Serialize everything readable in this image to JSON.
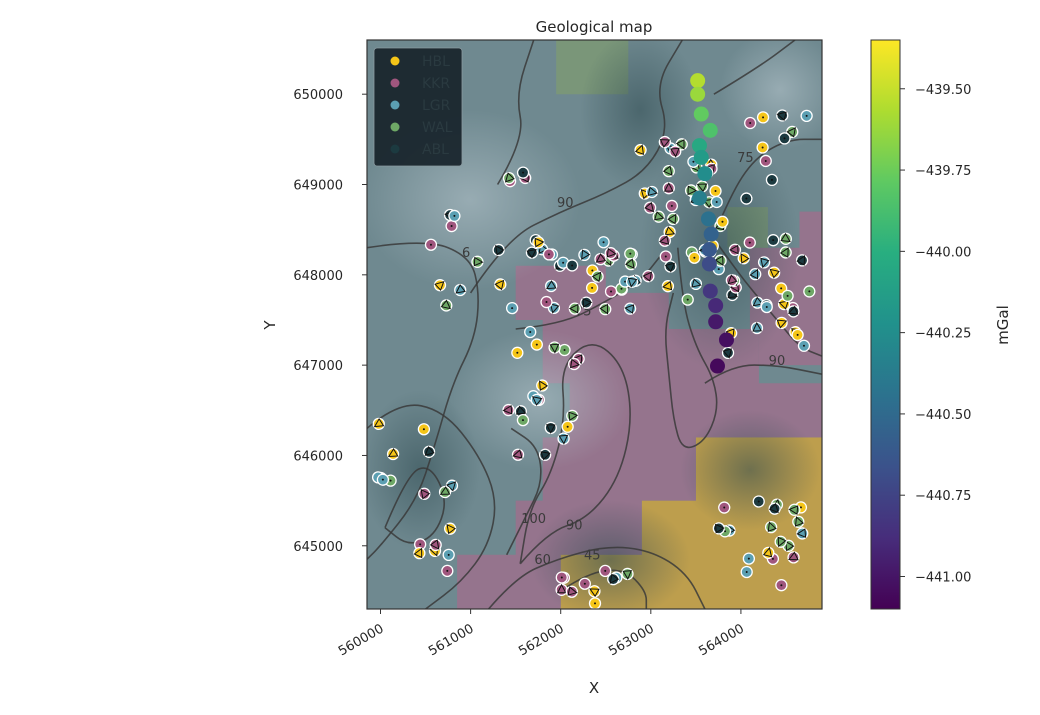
{
  "title": "Geological map",
  "xlabel": "X",
  "ylabel": "Y",
  "colorbar": {
    "label": "mGal",
    "range": [
      -441.1,
      -439.35
    ],
    "ticks": [
      -441.0,
      -440.75,
      -440.5,
      -440.25,
      -440.0,
      -439.75,
      -439.5
    ],
    "tick_labels": [
      "−441.00",
      "−440.75",
      "−440.50",
      "−440.25",
      "−440.00",
      "−439.75",
      "−439.50"
    ],
    "colormap": "viridis"
  },
  "chart_data": {
    "type": "scatter",
    "xlim": [
      559850,
      564900
    ],
    "ylim": [
      644300,
      650600
    ],
    "x_ticks": [
      560000,
      561000,
      562000,
      563000,
      564000
    ],
    "x_tick_labels": [
      "560000",
      "561000",
      "562000",
      "563000",
      "564000"
    ],
    "y_ticks": [
      645000,
      646000,
      647000,
      648000,
      649000,
      650000
    ],
    "y_tick_labels": [
      "645000",
      "646000",
      "647000",
      "648000",
      "649000",
      "650000"
    ],
    "legend": {
      "placement": "top-left",
      "entries": [
        {
          "label": "HBL",
          "color": "#f5c518"
        },
        {
          "label": "KKR",
          "color": "#a0567e"
        },
        {
          "label": "LGR",
          "color": "#5b9fb2"
        },
        {
          "label": "WAL",
          "color": "#6ea866"
        },
        {
          "label": "ABL",
          "color": "#1c3a40"
        }
      ]
    },
    "geology_units": [
      {
        "unit": "HBL",
        "color": "#d4a43a",
        "polygon": [
          [
            562000,
            644300
          ],
          [
            562000,
            644900
          ],
          [
            562900,
            644900
          ],
          [
            562900,
            645500
          ],
          [
            563500,
            645500
          ],
          [
            563500,
            646200
          ],
          [
            564900,
            646200
          ],
          [
            564900,
            644300
          ]
        ]
      },
      {
        "unit": "KKR",
        "color": "#a06e8c",
        "polygon": [
          [
            560850,
            644300
          ],
          [
            560850,
            644900
          ],
          [
            561500,
            644900
          ],
          [
            561500,
            645500
          ],
          [
            561800,
            645500
          ],
          [
            561800,
            646200
          ],
          [
            562100,
            646200
          ],
          [
            562100,
            646800
          ],
          [
            561800,
            646800
          ],
          [
            561800,
            647500
          ],
          [
            561500,
            647500
          ],
          [
            561500,
            648100
          ],
          [
            562500,
            648100
          ],
          [
            562500,
            647800
          ],
          [
            563200,
            647800
          ],
          [
            563200,
            647400
          ],
          [
            563900,
            647400
          ],
          [
            564200,
            647400
          ],
          [
            564200,
            646800
          ],
          [
            564900,
            646800
          ],
          [
            564900,
            646200
          ],
          [
            563500,
            646200
          ],
          [
            563500,
            645500
          ],
          [
            562900,
            645500
          ],
          [
            562900,
            644900
          ],
          [
            562000,
            644900
          ],
          [
            562000,
            644300
          ]
        ]
      },
      {
        "unit": "KKR",
        "color": "#a06e8c",
        "polygon": [
          [
            564100,
            648300
          ],
          [
            564650,
            648300
          ],
          [
            564650,
            648700
          ],
          [
            564900,
            648700
          ],
          [
            564900,
            647000
          ],
          [
            564200,
            647000
          ],
          [
            564200,
            647400
          ],
          [
            564100,
            647400
          ]
        ]
      },
      {
        "unit": "WAL",
        "color": "#7d9a72",
        "polygon": [
          [
            561950,
            650600
          ],
          [
            562750,
            650600
          ],
          [
            562750,
            650000
          ],
          [
            561950,
            650000
          ]
        ]
      },
      {
        "unit": "WAL",
        "color": "#7d9a72",
        "polygon": [
          [
            563850,
            648750
          ],
          [
            564300,
            648750
          ],
          [
            564300,
            648300
          ],
          [
            563850,
            648300
          ]
        ]
      }
    ],
    "contours": [
      {
        "label": "75",
        "label_at": [
          564050,
          649250
        ],
        "path": [
          [
            563650,
            648300
          ],
          [
            563800,
            648700
          ],
          [
            564100,
            649250
          ],
          [
            564500,
            649500
          ],
          [
            564900,
            649500
          ]
        ]
      },
      {
        "label": "90",
        "label_at": [
          562050,
          648750
        ],
        "path": [
          [
            561000,
            647800
          ],
          [
            561400,
            648400
          ],
          [
            562000,
            648700
          ],
          [
            562500,
            648900
          ],
          [
            562950,
            649150
          ],
          [
            563200,
            649600
          ],
          [
            563050,
            650100
          ],
          [
            563350,
            650600
          ]
        ]
      },
      {
        "label": "75",
        "label_at": [
          562250,
          647550
        ],
        "path": [
          [
            561500,
            647400
          ],
          [
            562000,
            647450
          ],
          [
            562500,
            647700
          ],
          [
            562900,
            647950
          ],
          [
            563100,
            648200
          ]
        ]
      },
      {
        "label": "6",
        "label_at": [
          560950,
          648200
        ],
        "path": [
          [
            559850,
            648300
          ],
          [
            560500,
            648400
          ],
          [
            561000,
            648200
          ],
          [
            561100,
            647800
          ],
          [
            561050,
            647300
          ],
          [
            560800,
            646800
          ],
          [
            560600,
            646100
          ],
          [
            560400,
            645500
          ],
          [
            560000,
            645000
          ],
          [
            559850,
            644850
          ]
        ]
      },
      {
        "label": "90",
        "label_at": [
          564400,
          647000
        ],
        "path": [
          [
            563600,
            646800
          ],
          [
            563900,
            647000
          ],
          [
            564400,
            647000
          ],
          [
            564900,
            646900
          ]
        ]
      },
      {
        "label": "90",
        "label_at": [
          562150,
          645180
        ],
        "path": [
          [
            561550,
            644800
          ],
          [
            561850,
            645150
          ],
          [
            562300,
            645300
          ],
          [
            562650,
            645750
          ],
          [
            562800,
            646400
          ],
          [
            562700,
            647000
          ],
          [
            562350,
            647300
          ],
          [
            562000,
            647000
          ],
          [
            562050,
            646400
          ],
          [
            561900,
            645800
          ],
          [
            561650,
            645400
          ],
          [
            561550,
            644800
          ]
        ]
      },
      {
        "label": "100",
        "label_at": [
          561700,
          645250
        ],
        "path": [
          [
            561400,
            644900
          ],
          [
            561600,
            645300
          ],
          [
            561800,
            645700
          ],
          [
            561750,
            646100
          ],
          [
            561450,
            646300
          ]
        ]
      },
      {
        "label": "60",
        "label_at": [
          561800,
          644800
        ],
        "path": [
          [
            561200,
            644300
          ],
          [
            561500,
            644650
          ],
          [
            561950,
            644850
          ],
          [
            562500,
            645000
          ],
          [
            563000,
            644950
          ],
          [
            563400,
            644700
          ],
          [
            563600,
            644300
          ]
        ]
      },
      {
        "label": "45",
        "label_at": [
          562350,
          644850
        ],
        "path": [
          [
            562000,
            644500
          ],
          [
            562300,
            644700
          ],
          [
            562700,
            644750
          ],
          [
            562950,
            644500
          ],
          [
            562950,
            644300
          ]
        ]
      },
      {
        "label": "",
        "label_at": null,
        "path": [
          [
            563300,
            648300
          ],
          [
            563350,
            647700
          ],
          [
            563500,
            647200
          ],
          [
            563700,
            646850
          ],
          [
            563750,
            646500
          ],
          [
            563600,
            646150
          ],
          [
            563350,
            646050
          ],
          [
            563250,
            646400
          ],
          [
            563200,
            646900
          ],
          [
            563150,
            647400
          ],
          [
            563250,
            647800
          ]
        ]
      },
      {
        "label": "",
        "label_at": null,
        "path": [
          [
            563700,
            648400
          ],
          [
            563950,
            648050
          ],
          [
            564150,
            647800
          ],
          [
            564400,
            647500
          ],
          [
            564650,
            647200
          ],
          [
            564900,
            647100
          ]
        ]
      },
      {
        "label": "",
        "label_at": null,
        "path": [
          [
            559850,
            646300
          ],
          [
            560200,
            646600
          ],
          [
            560700,
            646500
          ],
          [
            561100,
            646000
          ],
          [
            561300,
            645500
          ],
          [
            561200,
            645000
          ],
          [
            560900,
            644600
          ],
          [
            560500,
            644300
          ]
        ]
      },
      {
        "label": "",
        "label_at": null,
        "path": [
          [
            560050,
            645200
          ],
          [
            560300,
            645800
          ],
          [
            560550,
            645900
          ],
          [
            560750,
            645500
          ],
          [
            560600,
            645100
          ],
          [
            560300,
            645000
          ],
          [
            560050,
            645200
          ]
        ]
      },
      {
        "label": "",
        "label_at": null,
        "path": [
          [
            561300,
            649000
          ],
          [
            561600,
            649500
          ],
          [
            561500,
            650000
          ],
          [
            561700,
            650600
          ]
        ]
      },
      {
        "label": "",
        "label_at": null,
        "path": [
          [
            563700,
            650000
          ],
          [
            564200,
            650300
          ],
          [
            564600,
            650600
          ]
        ]
      }
    ],
    "gravity_stations": [
      {
        "x": 563520,
        "y": 650150,
        "v": -439.55
      },
      {
        "x": 563520,
        "y": 650000,
        "v": -439.62
      },
      {
        "x": 563560,
        "y": 649780,
        "v": -439.78
      },
      {
        "x": 563660,
        "y": 649600,
        "v": -439.85
      },
      {
        "x": 563540,
        "y": 649430,
        "v": -440.05
      },
      {
        "x": 563560,
        "y": 649300,
        "v": -440.15
      },
      {
        "x": 563600,
        "y": 649120,
        "v": -440.25
      },
      {
        "x": 563540,
        "y": 648850,
        "v": -440.35
      },
      {
        "x": 563640,
        "y": 648620,
        "v": -440.45
      },
      {
        "x": 563670,
        "y": 648450,
        "v": -440.55
      },
      {
        "x": 563650,
        "y": 648280,
        "v": -440.62
      },
      {
        "x": 563650,
        "y": 648120,
        "v": -440.7
      },
      {
        "x": 563660,
        "y": 647820,
        "v": -440.82
      },
      {
        "x": 563720,
        "y": 647660,
        "v": -440.9
      },
      {
        "x": 563720,
        "y": 647480,
        "v": -440.98
      },
      {
        "x": 563840,
        "y": 647280,
        "v": -441.03
      },
      {
        "x": 563740,
        "y": 646990,
        "v": -441.06
      }
    ]
  }
}
